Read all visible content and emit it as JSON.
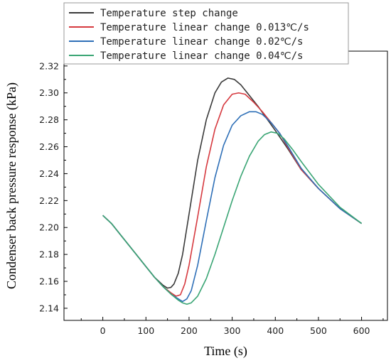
{
  "chart_data": {
    "type": "line",
    "title": "",
    "xlabel": "Time (s)",
    "ylabel": "Condenser back pressure response (kPa)",
    "xlim": [
      -90,
      660
    ],
    "ylim": [
      2.131,
      2.331
    ],
    "xticks": [
      0,
      100,
      200,
      300,
      400,
      500,
      600
    ],
    "xtick_labels": [
      "0",
      "100",
      "200",
      "300",
      "400",
      "500",
      "600"
    ],
    "yticks": [
      2.14,
      2.16,
      2.18,
      2.2,
      2.22,
      2.24,
      2.26,
      2.28,
      2.3,
      2.32
    ],
    "ytick_labels": [
      "2.14",
      "2.16",
      "2.18",
      "2.20",
      "2.22",
      "2.24",
      "2.26",
      "2.28",
      "2.30",
      "2.32"
    ],
    "grid": false,
    "legend_position": "top-left",
    "series": [
      {
        "name": "Temperature step change",
        "color": "#3a3a3a",
        "points": [
          [
            0,
            2.209
          ],
          [
            20,
            2.203
          ],
          [
            40,
            2.195
          ],
          [
            60,
            2.187
          ],
          [
            80,
            2.179
          ],
          [
            100,
            2.171
          ],
          [
            120,
            2.163
          ],
          [
            140,
            2.157
          ],
          [
            150,
            2.155
          ],
          [
            158,
            2.1555
          ],
          [
            165,
            2.158
          ],
          [
            175,
            2.166
          ],
          [
            185,
            2.18
          ],
          [
            200,
            2.21
          ],
          [
            220,
            2.25
          ],
          [
            240,
            2.28
          ],
          [
            260,
            2.3
          ],
          [
            275,
            2.308
          ],
          [
            290,
            2.311
          ],
          [
            305,
            2.31
          ],
          [
            320,
            2.306
          ],
          [
            340,
            2.298
          ],
          [
            360,
            2.29
          ],
          [
            380,
            2.281
          ],
          [
            400,
            2.272
          ],
          [
            430,
            2.258
          ],
          [
            460,
            2.243
          ],
          [
            500,
            2.229
          ],
          [
            550,
            2.214
          ],
          [
            600,
            2.203
          ]
        ]
      },
      {
        "name": "Temperature linear change 0.013℃/s",
        "color": "#d6393f",
        "points": [
          [
            0,
            2.209
          ],
          [
            20,
            2.203
          ],
          [
            40,
            2.195
          ],
          [
            60,
            2.187
          ],
          [
            80,
            2.179
          ],
          [
            100,
            2.171
          ],
          [
            120,
            2.163
          ],
          [
            140,
            2.156
          ],
          [
            160,
            2.151
          ],
          [
            170,
            2.149
          ],
          [
            180,
            2.15
          ],
          [
            190,
            2.158
          ],
          [
            200,
            2.172
          ],
          [
            220,
            2.208
          ],
          [
            240,
            2.245
          ],
          [
            260,
            2.273
          ],
          [
            280,
            2.291
          ],
          [
            300,
            2.299
          ],
          [
            315,
            2.3
          ],
          [
            330,
            2.299
          ],
          [
            350,
            2.293
          ],
          [
            370,
            2.286
          ],
          [
            390,
            2.278
          ],
          [
            410,
            2.27
          ],
          [
            430,
            2.259
          ],
          [
            460,
            2.243
          ],
          [
            500,
            2.229
          ],
          [
            550,
            2.214
          ],
          [
            600,
            2.203
          ]
        ]
      },
      {
        "name": "Temperature linear change 0.02℃/s",
        "color": "#2e6fb7",
        "points": [
          [
            0,
            2.209
          ],
          [
            20,
            2.203
          ],
          [
            40,
            2.195
          ],
          [
            60,
            2.187
          ],
          [
            80,
            2.179
          ],
          [
            100,
            2.171
          ],
          [
            120,
            2.163
          ],
          [
            140,
            2.156
          ],
          [
            160,
            2.15
          ],
          [
            175,
            2.147
          ],
          [
            185,
            2.145
          ],
          [
            195,
            2.147
          ],
          [
            205,
            2.153
          ],
          [
            220,
            2.172
          ],
          [
            240,
            2.205
          ],
          [
            260,
            2.237
          ],
          [
            280,
            2.261
          ],
          [
            300,
            2.276
          ],
          [
            320,
            2.283
          ],
          [
            340,
            2.286
          ],
          [
            355,
            2.286
          ],
          [
            370,
            2.284
          ],
          [
            390,
            2.278
          ],
          [
            410,
            2.27
          ],
          [
            430,
            2.26
          ],
          [
            460,
            2.244
          ],
          [
            500,
            2.229
          ],
          [
            550,
            2.214
          ],
          [
            600,
            2.203
          ]
        ]
      },
      {
        "name": "Temperature linear change 0.04℃/s",
        "color": "#3aa574",
        "points": [
          [
            0,
            2.209
          ],
          [
            20,
            2.203
          ],
          [
            40,
            2.195
          ],
          [
            60,
            2.187
          ],
          [
            80,
            2.179
          ],
          [
            100,
            2.171
          ],
          [
            120,
            2.163
          ],
          [
            140,
            2.156
          ],
          [
            160,
            2.15
          ],
          [
            175,
            2.146
          ],
          [
            185,
            2.144
          ],
          [
            195,
            2.143
          ],
          [
            205,
            2.144
          ],
          [
            220,
            2.149
          ],
          [
            240,
            2.162
          ],
          [
            260,
            2.18
          ],
          [
            280,
            2.2
          ],
          [
            300,
            2.22
          ],
          [
            320,
            2.238
          ],
          [
            340,
            2.253
          ],
          [
            360,
            2.264
          ],
          [
            375,
            2.269
          ],
          [
            390,
            2.271
          ],
          [
            405,
            2.27
          ],
          [
            420,
            2.266
          ],
          [
            440,
            2.258
          ],
          [
            460,
            2.249
          ],
          [
            500,
            2.232
          ],
          [
            550,
            2.215
          ],
          [
            600,
            2.203
          ]
        ]
      }
    ]
  }
}
